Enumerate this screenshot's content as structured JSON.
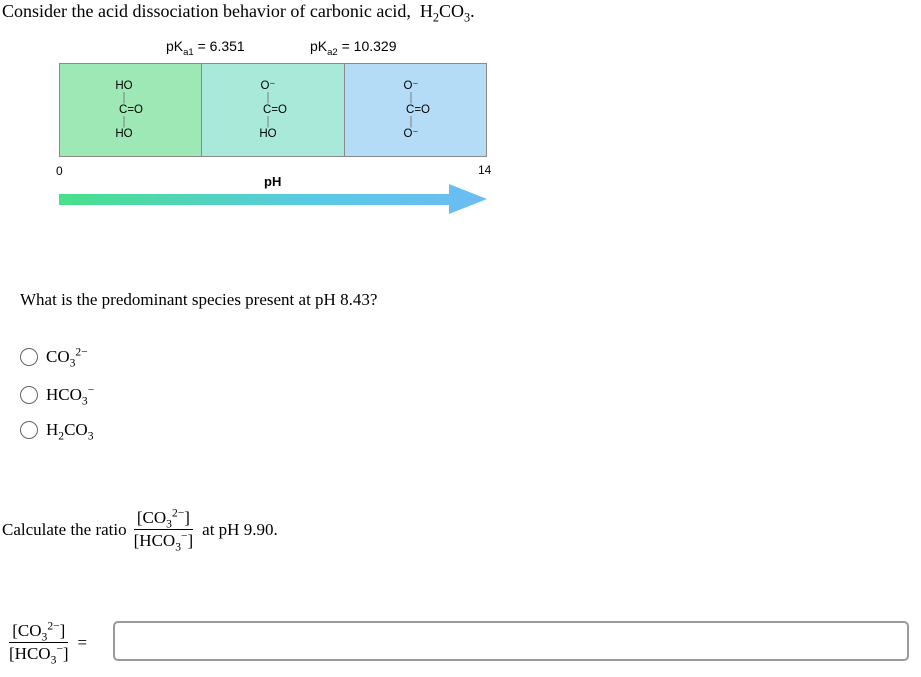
{
  "question": {
    "intro": "Consider the acid dissociation behavior of carbonic acid,",
    "acid_formula": {
      "pre": "H",
      "sub1": "2",
      "mid": "CO",
      "sub2": "3",
      "post": "."
    }
  },
  "diagram": {
    "pka1_label": "pK",
    "pka1_sub": "a1",
    "pka1_value": "= 6.351",
    "pka2_label": "pK",
    "pka2_sub": "a2",
    "pka2_value": "= 10.329",
    "axis_min": "0",
    "axis_max": "14",
    "axis_title": "pH",
    "region_colors": [
      "#9de8b4",
      "#a9e9d9",
      "#b5dcf7"
    ],
    "arrow_gradient": [
      "#47e08a",
      "#5ac9e6",
      "#6cbcf3"
    ],
    "species": [
      {
        "top": "HO",
        "bond_top": "|",
        "center": "C=O",
        "bond_bottom": "|",
        "bottom": "HO"
      },
      {
        "top": "O⁻",
        "bond_top": "|",
        "center": "C=O",
        "bond_bottom": "|",
        "bottom": "HO"
      },
      {
        "top": "O⁻",
        "bond_top": "|",
        "center": "C=O",
        "bond_bottom": "|",
        "bottom": "O⁻"
      }
    ]
  },
  "question2": {
    "text": "What is the predominant species present at pH 8.43?"
  },
  "options": [
    {
      "base": "CO",
      "sub": "3",
      "sup": "2−"
    },
    {
      "base": "HCO",
      "sub": "3",
      "sup": "−"
    },
    {
      "pre": "H",
      "pre_sub": "2",
      "base": "CO",
      "sub": "3",
      "sup": ""
    }
  ],
  "ratio_question": {
    "prefix": "Calculate the ratio",
    "num": {
      "open": "[CO",
      "sub": "3",
      "sup": "2−",
      "close": "]"
    },
    "den": {
      "open": "[HCO",
      "sub": "3",
      "sup": "−",
      "close": "]"
    },
    "suffix": "at pH 9.90."
  },
  "answer": {
    "equals": "=",
    "value": ""
  }
}
